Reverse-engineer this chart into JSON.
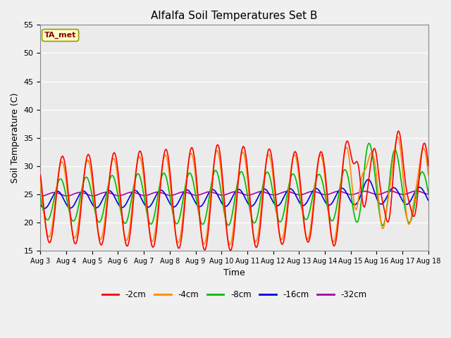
{
  "title": "Alfalfa Soil Temperatures Set B",
  "xlabel": "Time",
  "ylabel": "Soil Temperature (C)",
  "ylim": [
    15,
    55
  ],
  "background_color": "#f0f0f0",
  "plot_bg_color": "#ebebeb",
  "annotation_text": "TA_met",
  "annotation_color": "#8b0000",
  "annotation_bg": "#ffffcc",
  "annotation_edge": "#999900",
  "x_tick_labels": [
    "Aug 3",
    "Aug 4",
    "Aug 5",
    "Aug 6",
    "Aug 7",
    "Aug 8",
    "Aug 9",
    "Aug 10",
    "Aug 11",
    "Aug 12",
    "Aug 13",
    "Aug 14",
    "Aug 15",
    "Aug 16",
    "Aug 17",
    "Aug 18"
  ],
  "series": {
    "-2cm": {
      "color": "#ff0000",
      "lw": 1.2
    },
    "-4cm": {
      "color": "#ff8800",
      "lw": 1.2
    },
    "-8cm": {
      "color": "#00bb00",
      "lw": 1.2
    },
    "-16cm": {
      "color": "#0000dd",
      "lw": 1.2
    },
    "-32cm": {
      "color": "#aa00aa",
      "lw": 1.2
    }
  },
  "yticks": [
    15,
    20,
    25,
    30,
    35,
    40,
    45,
    50,
    55
  ],
  "figsize": [
    6.4,
    4.8
  ],
  "dpi": 100,
  "n_days": 15,
  "pts_per_day": 144
}
